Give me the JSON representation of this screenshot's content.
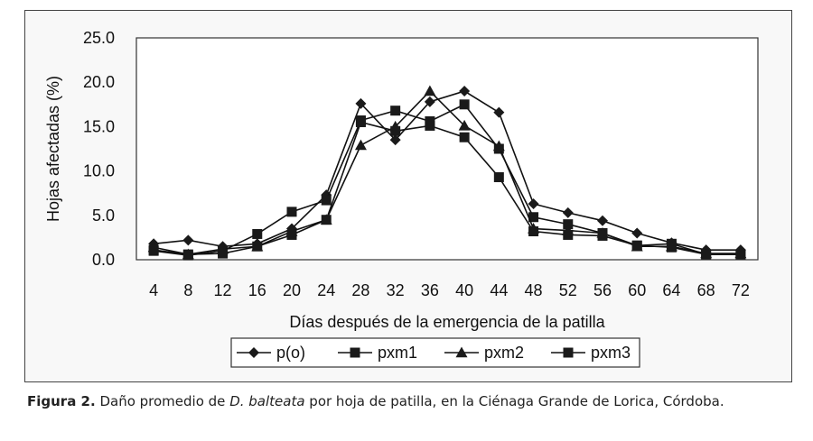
{
  "chart_data": {
    "type": "line",
    "xlabel": "Días después de la emergencia de la patilla",
    "ylabel": "Hojas afectadas (%)",
    "ylim": [
      0,
      25
    ],
    "yticks": [
      "0.0",
      "5.0",
      "10.0",
      "15.0",
      "20.0",
      "25.0"
    ],
    "x": [
      4,
      8,
      12,
      16,
      20,
      24,
      28,
      32,
      36,
      40,
      44,
      48,
      52,
      56,
      60,
      64,
      68,
      72
    ],
    "grid": "horizontal",
    "legend_position": "bottom",
    "series": [
      {
        "name": "p(o)",
        "marker": "diamond",
        "values": [
          1.8,
          2.2,
          1.5,
          1.8,
          3.5,
          7.3,
          17.6,
          13.5,
          17.8,
          19.0,
          16.6,
          6.3,
          5.3,
          4.4,
          3.0,
          1.9,
          1.1,
          1.1
        ]
      },
      {
        "name": "pxm1",
        "marker": "square",
        "values": [
          1.0,
          0.5,
          1.0,
          2.9,
          5.4,
          6.7,
          15.7,
          16.8,
          15.6,
          17.5,
          12.5,
          4.8,
          4.0,
          3.0,
          1.6,
          1.8,
          0.6,
          0.6
        ]
      },
      {
        "name": "pxm2",
        "marker": "triangle",
        "values": [
          1.4,
          0.6,
          1.2,
          1.5,
          3.2,
          4.5,
          12.9,
          15.0,
          19.0,
          15.1,
          12.8,
          3.5,
          3.3,
          3.0,
          1.5,
          1.5,
          0.7,
          0.7
        ]
      },
      {
        "name": "pxm3",
        "marker": "square",
        "values": [
          1.1,
          0.6,
          0.7,
          1.5,
          2.8,
          4.5,
          15.5,
          14.5,
          15.1,
          13.8,
          9.3,
          3.2,
          2.8,
          2.7,
          1.6,
          1.4,
          0.6,
          0.6
        ]
      }
    ]
  },
  "caption": {
    "label": "Figura 2.",
    "before_italic": " Daño promedio de ",
    "italic": "D. balteata",
    "after_italic": " por hoja de patilla, en la Ciénaga Grande de Lorica, Córdoba."
  }
}
